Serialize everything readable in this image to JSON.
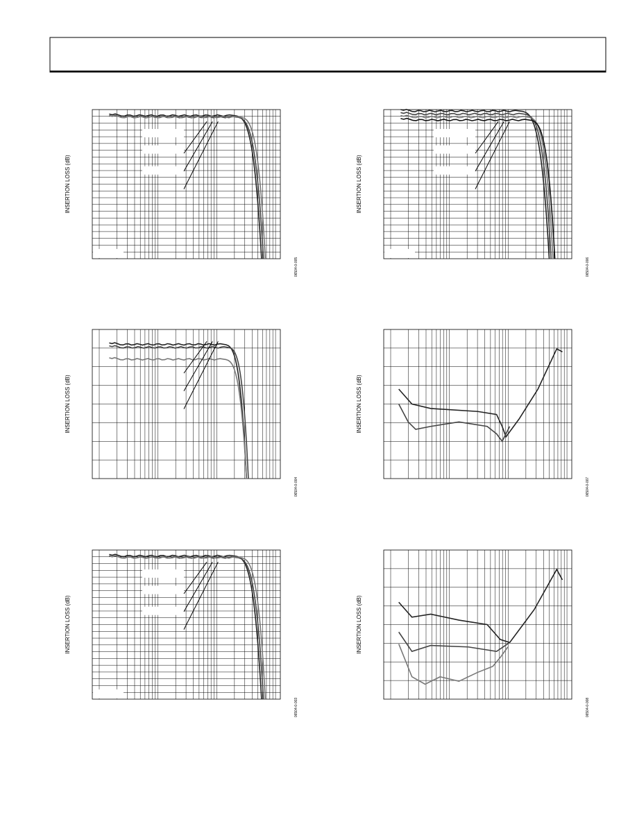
{
  "figures": [
    {
      "y_label": "INSERTION LOSS (dB)",
      "figure_id": "06504-0-005"
    },
    {
      "y_label": "INSERTION LOSS (dB)",
      "figure_id": "06504-0-006"
    },
    {
      "y_label": "INSERTION LOSS (dB)",
      "figure_id": "06504-0-004"
    },
    {
      "y_label": "INSERTION LOSS (dB)",
      "figure_id": "06504-0-007"
    },
    {
      "y_label": "INSERTION LOSS (dB)",
      "figure_id": "06504-0-003"
    },
    {
      "y_label": "INSERTION LOSS (dB)",
      "figure_id": "06504-0-008"
    }
  ]
}
